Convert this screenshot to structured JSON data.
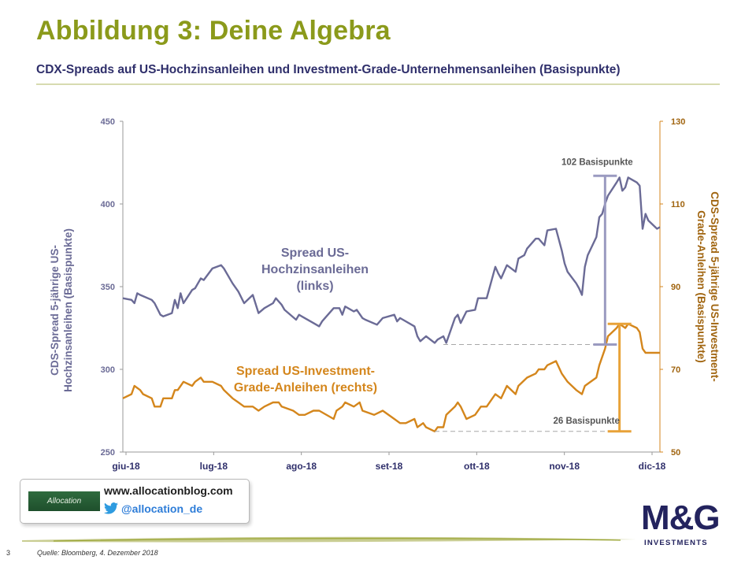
{
  "header": {
    "title": "Abbildung 3: Deine Algebra",
    "subtitle": "CDX-Spreads auf US-Hochzinsanleihen und Investment-Grade-Unternehmensanleihen (Basispunkte)"
  },
  "colors": {
    "title": "#8b9a1b",
    "high_yield": "#6b6b96",
    "investment_grade": "#d4861c",
    "annotation_hy": "#9a9ac0",
    "annotation_ig": "#e8a238"
  },
  "chart_data": {
    "type": "line",
    "x_labels": [
      "giu-18",
      "lug-18",
      "ago-18",
      "set-18",
      "ott-18",
      "nov-18",
      "dic-18"
    ],
    "xlim": [
      "2018-06-01",
      "2018-12-04"
    ],
    "y_left": {
      "label_lines": [
        "CDS-Spread 5-jährige US-",
        "Hochzinsanleihen (Basispunkte)"
      ],
      "lim": [
        250,
        450
      ],
      "ticks": [
        "250",
        "300",
        "350",
        "400",
        "450"
      ]
    },
    "y_right": {
      "label_lines": [
        "CDS-Spread 5-jährige US-Investment-",
        "Grade-Anleihen (Basispunkte)"
      ],
      "lim": [
        50,
        130
      ],
      "ticks": [
        "50",
        "70",
        "90",
        "110",
        "130"
      ]
    },
    "grid": false,
    "series": [
      {
        "name": "Spread US-Hochzinsanleihen (links)",
        "label_lines": [
          "Spread US-",
          "Hochzinsanleihen",
          "(links)"
        ],
        "axis": "left",
        "points": [
          [
            "2018-06-01",
            343
          ],
          [
            "2018-06-04",
            342
          ],
          [
            "2018-06-05",
            340
          ],
          [
            "2018-06-06",
            346
          ],
          [
            "2018-06-07",
            345
          ],
          [
            "2018-06-11",
            342
          ],
          [
            "2018-06-12",
            340
          ],
          [
            "2018-06-14",
            333
          ],
          [
            "2018-06-15",
            332
          ],
          [
            "2018-06-18",
            334
          ],
          [
            "2018-06-19",
            342
          ],
          [
            "2018-06-20",
            337
          ],
          [
            "2018-06-21",
            346
          ],
          [
            "2018-06-22",
            340
          ],
          [
            "2018-06-25",
            348
          ],
          [
            "2018-06-26",
            349
          ],
          [
            "2018-06-28",
            355
          ],
          [
            "2018-06-29",
            354
          ],
          [
            "2018-07-02",
            361
          ],
          [
            "2018-07-05",
            363
          ],
          [
            "2018-07-06",
            361
          ],
          [
            "2018-07-09",
            352
          ],
          [
            "2018-07-11",
            347
          ],
          [
            "2018-07-13",
            340
          ],
          [
            "2018-07-16",
            345
          ],
          [
            "2018-07-18",
            334
          ],
          [
            "2018-07-20",
            337
          ],
          [
            "2018-07-23",
            340
          ],
          [
            "2018-07-24",
            343
          ],
          [
            "2018-07-26",
            339
          ],
          [
            "2018-07-27",
            336
          ],
          [
            "2018-07-31",
            330
          ],
          [
            "2018-08-01",
            333
          ],
          [
            "2018-08-03",
            331
          ],
          [
            "2018-08-06",
            328
          ],
          [
            "2018-08-08",
            326
          ],
          [
            "2018-08-09",
            329
          ],
          [
            "2018-08-13",
            337
          ],
          [
            "2018-08-15",
            337
          ],
          [
            "2018-08-16",
            333
          ],
          [
            "2018-08-17",
            338
          ],
          [
            "2018-08-20",
            335
          ],
          [
            "2018-08-21",
            336
          ],
          [
            "2018-08-23",
            331
          ],
          [
            "2018-08-24",
            330
          ],
          [
            "2018-08-28",
            327
          ],
          [
            "2018-08-30",
            331
          ],
          [
            "2018-09-03",
            333
          ],
          [
            "2018-09-04",
            329
          ],
          [
            "2018-09-05",
            331
          ],
          [
            "2018-09-06",
            330
          ],
          [
            "2018-09-10",
            326
          ],
          [
            "2018-09-11",
            320
          ],
          [
            "2018-09-12",
            317
          ],
          [
            "2018-09-14",
            320
          ],
          [
            "2018-09-17",
            316
          ],
          [
            "2018-09-18",
            318
          ],
          [
            "2018-09-20",
            320
          ],
          [
            "2018-09-21",
            316
          ],
          [
            "2018-09-24",
            331
          ],
          [
            "2018-09-25",
            333
          ],
          [
            "2018-09-26",
            328
          ],
          [
            "2018-09-28",
            335
          ],
          [
            "2018-10-01",
            336
          ],
          [
            "2018-10-02",
            343
          ],
          [
            "2018-10-05",
            343
          ],
          [
            "2018-10-08",
            362
          ],
          [
            "2018-10-09",
            358
          ],
          [
            "2018-10-10",
            355
          ],
          [
            "2018-10-12",
            363
          ],
          [
            "2018-10-15",
            359
          ],
          [
            "2018-10-16",
            367
          ],
          [
            "2018-10-18",
            369
          ],
          [
            "2018-10-19",
            373
          ],
          [
            "2018-10-22",
            379
          ],
          [
            "2018-10-23",
            379
          ],
          [
            "2018-10-25",
            375
          ],
          [
            "2018-10-26",
            384
          ],
          [
            "2018-10-29",
            385
          ],
          [
            "2018-10-31",
            372
          ],
          [
            "2018-11-01",
            364
          ],
          [
            "2018-11-02",
            359
          ],
          [
            "2018-11-05",
            352
          ],
          [
            "2018-11-06",
            349
          ],
          [
            "2018-11-07",
            345
          ],
          [
            "2018-11-08",
            362
          ],
          [
            "2018-11-09",
            369
          ],
          [
            "2018-11-12",
            380
          ],
          [
            "2018-11-13",
            392
          ],
          [
            "2018-11-14",
            394
          ],
          [
            "2018-11-15",
            400
          ],
          [
            "2018-11-16",
            405
          ],
          [
            "2018-11-19",
            413
          ],
          [
            "2018-11-20",
            416
          ],
          [
            "2018-11-21",
            408
          ],
          [
            "2018-11-22",
            410
          ],
          [
            "2018-11-23",
            416
          ],
          [
            "2018-11-26",
            413
          ],
          [
            "2018-11-27",
            411
          ],
          [
            "2018-11-28",
            385
          ],
          [
            "2018-11-29",
            394
          ],
          [
            "2018-11-30",
            390
          ],
          [
            "2018-12-03",
            385
          ],
          [
            "2018-12-04",
            386
          ]
        ]
      },
      {
        "name": "Spread US-Investment-Grade-Anleihen (rechts)",
        "label_lines": [
          "Spread US-Investment-",
          "Grade-Anleihen (rechts)"
        ],
        "axis": "right",
        "points": [
          [
            "2018-06-01",
            63
          ],
          [
            "2018-06-04",
            64
          ],
          [
            "2018-06-05",
            66
          ],
          [
            "2018-06-07",
            65
          ],
          [
            "2018-06-08",
            64
          ],
          [
            "2018-06-11",
            63
          ],
          [
            "2018-06-12",
            61
          ],
          [
            "2018-06-14",
            61
          ],
          [
            "2018-06-15",
            63
          ],
          [
            "2018-06-18",
            63
          ],
          [
            "2018-06-19",
            65
          ],
          [
            "2018-06-20",
            65
          ],
          [
            "2018-06-22",
            67
          ],
          [
            "2018-06-25",
            66
          ],
          [
            "2018-06-26",
            67
          ],
          [
            "2018-06-28",
            68
          ],
          [
            "2018-06-29",
            67
          ],
          [
            "2018-07-02",
            67
          ],
          [
            "2018-07-05",
            66
          ],
          [
            "2018-07-06",
            65
          ],
          [
            "2018-07-09",
            63
          ],
          [
            "2018-07-11",
            62
          ],
          [
            "2018-07-13",
            61
          ],
          [
            "2018-07-16",
            61
          ],
          [
            "2018-07-18",
            60
          ],
          [
            "2018-07-20",
            61
          ],
          [
            "2018-07-23",
            62
          ],
          [
            "2018-07-25",
            62
          ],
          [
            "2018-07-26",
            61
          ],
          [
            "2018-07-30",
            60
          ],
          [
            "2018-08-01",
            59
          ],
          [
            "2018-08-03",
            59
          ],
          [
            "2018-08-06",
            60
          ],
          [
            "2018-08-08",
            60
          ],
          [
            "2018-08-13",
            58
          ],
          [
            "2018-08-14",
            60
          ],
          [
            "2018-08-16",
            61
          ],
          [
            "2018-08-17",
            62
          ],
          [
            "2018-08-20",
            61
          ],
          [
            "2018-08-22",
            62
          ],
          [
            "2018-08-23",
            60
          ],
          [
            "2018-08-27",
            59
          ],
          [
            "2018-08-30",
            60
          ],
          [
            "2018-09-03",
            58
          ],
          [
            "2018-09-05",
            57
          ],
          [
            "2018-09-07",
            57
          ],
          [
            "2018-09-10",
            58
          ],
          [
            "2018-09-11",
            56
          ],
          [
            "2018-09-13",
            57
          ],
          [
            "2018-09-14",
            56
          ],
          [
            "2018-09-17",
            55
          ],
          [
            "2018-09-18",
            56
          ],
          [
            "2018-09-20",
            56
          ],
          [
            "2018-09-21",
            59
          ],
          [
            "2018-09-24",
            61
          ],
          [
            "2018-09-25",
            62
          ],
          [
            "2018-09-26",
            61
          ],
          [
            "2018-09-28",
            58
          ],
          [
            "2018-10-01",
            59
          ],
          [
            "2018-10-03",
            61
          ],
          [
            "2018-10-05",
            61
          ],
          [
            "2018-10-08",
            64
          ],
          [
            "2018-10-10",
            63
          ],
          [
            "2018-10-12",
            66
          ],
          [
            "2018-10-15",
            64
          ],
          [
            "2018-10-16",
            66
          ],
          [
            "2018-10-19",
            68
          ],
          [
            "2018-10-22",
            69
          ],
          [
            "2018-10-23",
            70
          ],
          [
            "2018-10-25",
            70
          ],
          [
            "2018-10-26",
            71
          ],
          [
            "2018-10-29",
            72
          ],
          [
            "2018-10-31",
            69
          ],
          [
            "2018-11-02",
            67
          ],
          [
            "2018-11-05",
            65
          ],
          [
            "2018-11-07",
            64
          ],
          [
            "2018-11-08",
            66
          ],
          [
            "2018-11-12",
            68
          ],
          [
            "2018-11-13",
            71
          ],
          [
            "2018-11-15",
            75
          ],
          [
            "2018-11-16",
            78
          ],
          [
            "2018-11-19",
            80
          ],
          [
            "2018-11-20",
            81
          ],
          [
            "2018-11-22",
            80
          ],
          [
            "2018-11-23",
            81
          ],
          [
            "2018-11-26",
            80
          ],
          [
            "2018-11-27",
            79
          ],
          [
            "2018-11-28",
            75
          ],
          [
            "2018-11-29",
            74
          ],
          [
            "2018-11-30",
            74
          ],
          [
            "2018-12-03",
            74
          ],
          [
            "2018-12-04",
            74
          ]
        ]
      }
    ],
    "annotations": [
      {
        "text": "102 Basispunkte",
        "series": "high_yield",
        "from": 315,
        "to": 417,
        "start_date": "2018-09-20",
        "date": "2018-11-15"
      },
      {
        "text": "26 Basispunkte",
        "series": "investment_grade",
        "from": 55,
        "to": 81,
        "start_date": "2018-09-17",
        "date": "2018-11-20"
      }
    ]
  },
  "branding": {
    "box_logo": "Allocation",
    "url": "www.allocationblog.com",
    "twitter": "@allocation_de",
    "company_main": "M&G",
    "company_sub": "INVESTMENTS"
  },
  "footer": {
    "page_number": "3",
    "source": "Quelle: Bloomberg, 4. Dezember 2018"
  }
}
